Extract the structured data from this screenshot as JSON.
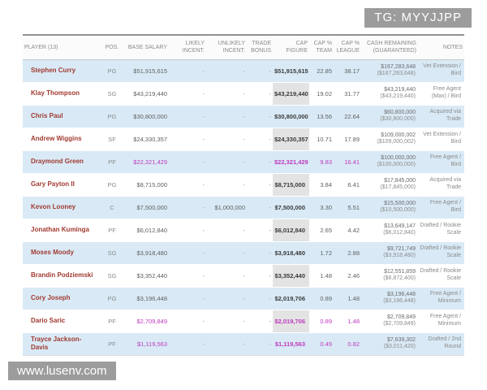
{
  "badge": {
    "text": "TG: MYYJJPP",
    "bg": "#9c9c9c",
    "color": "#ffffff"
  },
  "watermark": {
    "text": "www.lusenv.com",
    "bg": "#9c9c9c",
    "color": "#ffffff"
  },
  "colors": {
    "row_alt": "#d9eaf6",
    "cap_cell": "#e3e3e3",
    "player": "#a13a30",
    "magenta": "#bf39bf",
    "header_text": "#8a8a8a"
  },
  "table": {
    "columns": [
      "PLAYER (13)",
      "POS.",
      "BASE SALARY",
      "LIKELY INCENT.",
      "UNLIKELY INCENT.",
      "TRADE BONUS",
      "CAP FIGURE",
      "CAP % TEAM",
      "CAP % LEAGUE",
      "CASH REMAINING (GUARANTEED)",
      "NOTES"
    ],
    "rows": [
      {
        "player": "Stephen Curry",
        "pos": "PG",
        "base_salary": "$51,915,615",
        "likely_incent": "-",
        "unlikely_incent": "-",
        "trade_bonus": "-",
        "cap_figure": "$51,915,615",
        "cap_pct_team": "22.85",
        "cap_pct_league": "38.17",
        "cash_remaining": "$167,283,648",
        "cash_guaranteed": "($167,283,648)",
        "notes": "Vet Extension / Bird",
        "magenta": []
      },
      {
        "player": "Klay Thompson",
        "pos": "SG",
        "base_salary": "$43,219,440",
        "likely_incent": "-",
        "unlikely_incent": "-",
        "trade_bonus": "-",
        "cap_figure": "$43,219,440",
        "cap_pct_team": "19.02",
        "cap_pct_league": "31.77",
        "cash_remaining": "$43,219,440",
        "cash_guaranteed": "($43,219,440)",
        "notes": "Free Agent (Max) / Bird",
        "magenta": []
      },
      {
        "player": "Chris Paul",
        "pos": "PG",
        "base_salary": "$30,800,000",
        "likely_incent": "-",
        "unlikely_incent": "-",
        "trade_bonus": "-",
        "cap_figure": "$30,800,000",
        "cap_pct_team": "13.56",
        "cap_pct_league": "22.64",
        "cash_remaining": "$60,800,000",
        "cash_guaranteed": "($30,800,000)",
        "notes": "Acquired via Trade",
        "magenta": []
      },
      {
        "player": "Andrew Wiggins",
        "pos": "SF",
        "base_salary": "$24,330,357",
        "likely_incent": "-",
        "unlikely_incent": "-",
        "trade_bonus": "-",
        "cap_figure": "$24,330,357",
        "cap_pct_team": "10.71",
        "cap_pct_league": "17.89",
        "cash_remaining": "$109,000,002",
        "cash_guaranteed": "($109,000,002)",
        "notes": "Vet Extension / Bird",
        "magenta": []
      },
      {
        "player": "Draymond Green",
        "pos": "PF",
        "base_salary": "$22,321,429",
        "likely_incent": "-",
        "unlikely_incent": "-",
        "trade_bonus": "-",
        "cap_figure": "$22,321,429",
        "cap_pct_team": "9.83",
        "cap_pct_league": "16.41",
        "cash_remaining": "$100,000,000",
        "cash_guaranteed": "($100,000,000)",
        "notes": "Free Agent / Bird",
        "magenta": [
          "base",
          "cap",
          "team",
          "league"
        ]
      },
      {
        "player": "Gary Payton II",
        "pos": "PG",
        "base_salary": "$8,715,000",
        "likely_incent": "-",
        "unlikely_incent": "-",
        "trade_bonus": "-",
        "cap_figure": "$8,715,000",
        "cap_pct_team": "3.84",
        "cap_pct_league": "6.41",
        "cash_remaining": "$17,845,000",
        "cash_guaranteed": "($17,845,000)",
        "notes": "Acquired via Trade",
        "magenta": []
      },
      {
        "player": "Kevon Looney",
        "pos": "C",
        "base_salary": "$7,500,000",
        "likely_incent": "-",
        "unlikely_incent": "$1,000,000",
        "trade_bonus": "-",
        "cap_figure": "$7,500,000",
        "cap_pct_team": "3.30",
        "cap_pct_league": "5.51",
        "cash_remaining": "$15,500,000",
        "cash_guaranteed": "($10,500,000)",
        "notes": "Free Agent / Bird",
        "magenta": []
      },
      {
        "player": "Jonathan Kuminga",
        "pos": "PF",
        "base_salary": "$6,012,840",
        "likely_incent": "-",
        "unlikely_incent": "-",
        "trade_bonus": "-",
        "cap_figure": "$6,012,840",
        "cap_pct_team": "2.65",
        "cap_pct_league": "4.42",
        "cash_remaining": "$13,649,147",
        "cash_guaranteed": "($6,012,840)",
        "notes": "Drafted / Rookie Scale",
        "magenta": []
      },
      {
        "player": "Moses Moody",
        "pos": "SG",
        "base_salary": "$3,918,480",
        "likely_incent": "-",
        "unlikely_incent": "-",
        "trade_bonus": "-",
        "cap_figure": "$3,918,480",
        "cap_pct_team": "1.72",
        "cap_pct_league": "2.88",
        "cash_remaining": "$9,721,749",
        "cash_guaranteed": "($3,918,480)",
        "notes": "Drafted / Rookie Scale",
        "magenta": []
      },
      {
        "player": "Brandin Podziemski",
        "pos": "SG",
        "base_salary": "$3,352,440",
        "likely_incent": "-",
        "unlikely_incent": "-",
        "trade_bonus": "-",
        "cap_figure": "$3,352,440",
        "cap_pct_team": "1.48",
        "cap_pct_league": "2.46",
        "cash_remaining": "$12,551,859",
        "cash_guaranteed": "($6,872,400)",
        "notes": "Drafted / Rookie Scale",
        "magenta": []
      },
      {
        "player": "Cory Joseph",
        "pos": "PG",
        "base_salary": "$3,196,448",
        "likely_incent": "-",
        "unlikely_incent": "-",
        "trade_bonus": "-",
        "cap_figure": "$2,019,706",
        "cap_pct_team": "0.89",
        "cap_pct_league": "1.48",
        "cash_remaining": "$3,196,448",
        "cash_guaranteed": "($3,196,448)",
        "notes": "Free Agent / Minimum",
        "magenta": []
      },
      {
        "player": "Dario Saric",
        "pos": "PF",
        "base_salary": "$2,709,849",
        "likely_incent": "-",
        "unlikely_incent": "-",
        "trade_bonus": "-",
        "cap_figure": "$2,019,706",
        "cap_pct_team": "0.89",
        "cap_pct_league": "1.48",
        "cash_remaining": "$2,709,849",
        "cash_guaranteed": "($2,709,849)",
        "notes": "Free Agent / Minimum",
        "magenta": [
          "base",
          "cap",
          "team",
          "league"
        ]
      },
      {
        "player": "Trayce Jackson-Davis",
        "pos": "PF",
        "base_salary": "$1,119,563",
        "likely_incent": "-",
        "unlikely_incent": "-",
        "trade_bonus": "-",
        "cap_figure": "$1,119,563",
        "cap_pct_team": "0.49",
        "cap_pct_league": "0.82",
        "cash_remaining": "$7,639,302",
        "cash_guaranteed": "($3,011,420)",
        "notes": "Drafted / 2nd Round",
        "magenta": [
          "base",
          "cap",
          "team",
          "league"
        ]
      }
    ]
  }
}
